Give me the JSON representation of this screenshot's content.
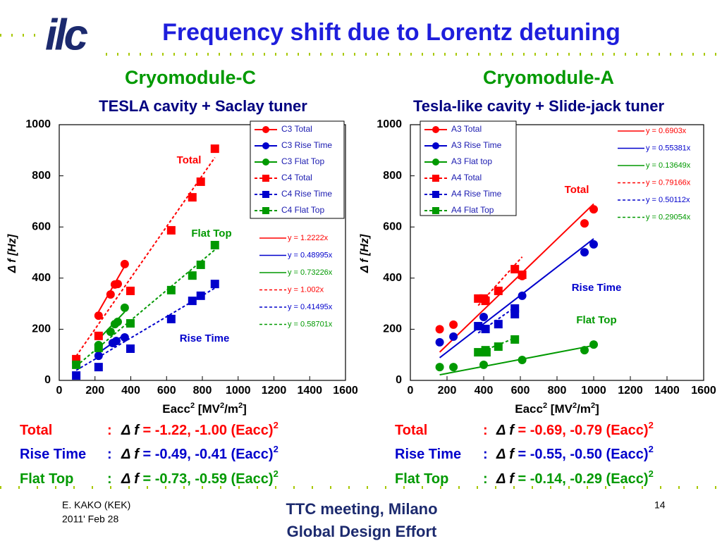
{
  "slide": {
    "logo": "ilc",
    "title": "Frequency shift due to Lorentz detuning",
    "footer_left": [
      "E. KAKO (KEK)",
      "2011' Feb 28"
    ],
    "footer_center": [
      "TTC meeting, Milano",
      "Global Design Effort"
    ],
    "page": "14"
  },
  "chart_data": [
    {
      "type": "scatter",
      "title": "Cryomodule-C",
      "subtitle": "TESLA cavity + Saclay tuner",
      "xlabel": [
        "Eacc",
        "2",
        "  [MV",
        "2",
        "/m",
        "2",
        "]"
      ],
      "ylabel": "Δ f  [Hz]",
      "xlim": [
        0,
        1600
      ],
      "ylim": [
        0,
        1000
      ],
      "xticks": [
        0,
        200,
        400,
        600,
        800,
        1000,
        1200,
        1400,
        1600
      ],
      "yticks": [
        0,
        200,
        400,
        600,
        800,
        1000
      ],
      "series": [
        {
          "name": "C3 Total",
          "color": "#ff0000",
          "marker": "circle",
          "line": "solid",
          "fit_slope": 1.2222,
          "fit_label": "y = 1.2222x",
          "x": [
            220,
            287,
            311,
            327,
            366
          ],
          "values": [
            253,
            336,
            375,
            377,
            455
          ]
        },
        {
          "name": "C3 Rise Time",
          "color": "#0000cc",
          "marker": "circle",
          "line": "solid",
          "fit_slope": 0.48995,
          "fit_label": "y = 0.48995x",
          "x": [
            220,
            299,
            319,
            366
          ],
          "values": [
            96,
            146,
            154,
            168
          ]
        },
        {
          "name": "C3 Flat Top",
          "color": "#009900",
          "marker": "circle",
          "line": "solid",
          "fit_slope": 0.73226,
          "fit_label": "y = 0.73226x",
          "x": [
            220,
            287,
            311,
            327,
            366
          ],
          "values": [
            138,
            190,
            220,
            229,
            284
          ]
        },
        {
          "name": "C4 Total",
          "color": "#ff0000",
          "marker": "square",
          "line": "dashed",
          "fit_slope": 1.002,
          "fit_label": "y = 1.002x",
          "x": [
            95,
            220,
            398,
            626,
            744,
            791,
            870
          ],
          "values": [
            83,
            174,
            350,
            587,
            716,
            777,
            906
          ]
        },
        {
          "name": "C4 Rise Time",
          "color": "#0000cc",
          "marker": "square",
          "line": "dashed",
          "fit_slope": 0.41495,
          "fit_label": "y = 0.41495x",
          "x": [
            95,
            220,
            398,
            626,
            744,
            791,
            870
          ],
          "values": [
            19,
            52,
            124,
            240,
            311,
            331,
            377
          ]
        },
        {
          "name": "C4 Flat Top",
          "color": "#009900",
          "marker": "square",
          "line": "dashed",
          "fit_slope": 0.58701,
          "fit_label": "y = 0.58701x",
          "x": [
            95,
            220,
            398,
            626,
            744,
            791,
            870
          ],
          "values": [
            61,
            127,
            223,
            353,
            410,
            452,
            529
          ]
        }
      ],
      "annotations": [
        {
          "text": "Total",
          "color": "#ff0000"
        },
        {
          "text": "Flat Top",
          "color": "#009900"
        },
        {
          "text": "Rise Time",
          "color": "#0000cc"
        }
      ],
      "summary": [
        {
          "color": "#ff0000",
          "parts": [
            "Total",
            ":",
            "Δ f",
            " = -1.22, -1.00 (Eacc)",
            "2"
          ]
        },
        {
          "color": "#0000cc",
          "parts": [
            "Rise Time",
            ":",
            "Δ f",
            " = -0.49, -0.41 (Eacc)",
            "2"
          ]
        },
        {
          "color": "#009900",
          "parts": [
            "Flat Top",
            ":",
            "Δ f",
            " = -0.73, -0.59 (Eacc)",
            "2"
          ]
        }
      ]
    },
    {
      "type": "scatter",
      "title": "Cryomodule-A",
      "subtitle": "Tesla-like cavity + Slide-jack tuner",
      "xlabel": [
        "Eacc",
        "2",
        "  [MV",
        "2",
        "/m",
        "2",
        "]"
      ],
      "ylabel": "Δ f  [Hz]",
      "xlim": [
        0,
        1600
      ],
      "ylim": [
        0,
        1000
      ],
      "xticks": [
        0,
        200,
        400,
        600,
        800,
        1000,
        1200,
        1400,
        1600
      ],
      "yticks": [
        0,
        200,
        400,
        600,
        800,
        1000
      ],
      "series": [
        {
          "name": "A3 Total",
          "color": "#ff0000",
          "marker": "circle",
          "line": "solid",
          "fit_slope": 0.6903,
          "fit_label": "y = 0.6903x",
          "x": [
            160,
            235,
            410,
            610,
            950,
            1000
          ],
          "values": [
            200,
            218,
            317,
            408,
            614,
            669
          ]
        },
        {
          "name": "A3 Rise Time",
          "color": "#0000cc",
          "marker": "circle",
          "line": "solid",
          "fit_slope": 0.55381,
          "fit_label": "y = 0.55381x",
          "x": [
            160,
            235,
            400,
            610,
            950,
            1000
          ],
          "values": [
            149,
            171,
            248,
            331,
            501,
            532
          ]
        },
        {
          "name": "A3 Flat top",
          "color": "#009900",
          "marker": "circle",
          "line": "solid",
          "fit_slope": 0.13649,
          "fit_label": "y = 0.13649x",
          "x": [
            160,
            235,
            400,
            610,
            950,
            1000
          ],
          "values": [
            52,
            52,
            61,
            80,
            118,
            140
          ]
        },
        {
          "name": "A4 Total",
          "color": "#ff0000",
          "marker": "square",
          "line": "dashed",
          "fit_slope": 0.79166,
          "fit_label": "y = 0.79166x",
          "x": [
            370,
            400,
            410,
            480,
            570,
            610
          ],
          "values": [
            320,
            320,
            311,
            350,
            435,
            413
          ]
        },
        {
          "name": "A4 Rise Time",
          "color": "#0000cc",
          "marker": "square",
          "line": "dashed",
          "fit_slope": 0.50112,
          "fit_label": "y = 0.50112x",
          "x": [
            370,
            410,
            480,
            570,
            570
          ],
          "values": [
            212,
            201,
            220,
            281,
            259
          ]
        },
        {
          "name": "A4 Flat Top",
          "color": "#009900",
          "marker": "square",
          "line": "dashed",
          "fit_slope": 0.29054,
          "fit_label": "y = 0.29054x",
          "x": [
            370,
            410,
            415,
            480,
            570
          ],
          "values": [
            110,
            118,
            110,
            132,
            160
          ]
        }
      ],
      "annotations": [
        {
          "text": "Total",
          "color": "#ff0000"
        },
        {
          "text": "Rise Time",
          "color": "#0000cc"
        },
        {
          "text": "Flat Top",
          "color": "#009900"
        }
      ],
      "summary": [
        {
          "color": "#ff0000",
          "parts": [
            "Total",
            ":",
            "Δ f",
            " = -0.69, -0.79 (Eacc)",
            "2"
          ]
        },
        {
          "color": "#0000cc",
          "parts": [
            "Rise Time",
            ":",
            "Δ f",
            " = -0.55, -0.50 (Eacc)",
            "2"
          ]
        },
        {
          "color": "#009900",
          "parts": [
            "Flat Top",
            ":",
            "Δ f",
            " = -0.14, -0.29 (Eacc)",
            "2"
          ]
        }
      ]
    }
  ]
}
